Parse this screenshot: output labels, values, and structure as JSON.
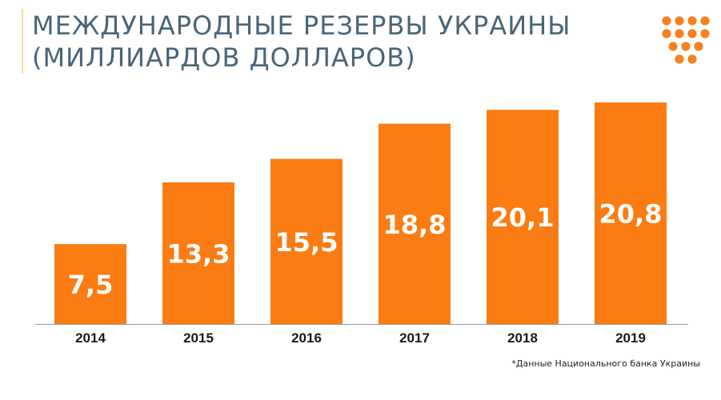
{
  "header": {
    "title_line1": "МЕЖДУНАРОДНЫЕ РЕЗЕРВЫ УКРАИНЫ",
    "title_line2": "(МИЛЛИАРДОВ ДОЛЛАРОВ)"
  },
  "logo": {
    "icon": "dot-triangle-logo",
    "color": "#f58220"
  },
  "footnote": "*Данные Национального банка Украины",
  "chart_data": {
    "type": "bar",
    "categories": [
      "2014",
      "2015",
      "2016",
      "2017",
      "2018",
      "2019"
    ],
    "values": [
      7.5,
      13.3,
      15.5,
      18.8,
      20.1,
      20.8
    ],
    "value_labels": [
      "7,5",
      "13,3",
      "15,5",
      "18,8",
      "20,1",
      "20,8"
    ],
    "title": "МЕЖДУНАРОДНЫЕ РЕЗЕРВЫ УКРАИНЫ (МИЛЛИАРДОВ ДОЛЛАРОВ)",
    "xlabel": "",
    "ylabel": "",
    "ylim": [
      0,
      20.8
    ],
    "grid": false,
    "legend": "none",
    "bar_color": "#fa7c12",
    "label_color": "#ffffff",
    "axis_color": "#9a9a9a"
  }
}
